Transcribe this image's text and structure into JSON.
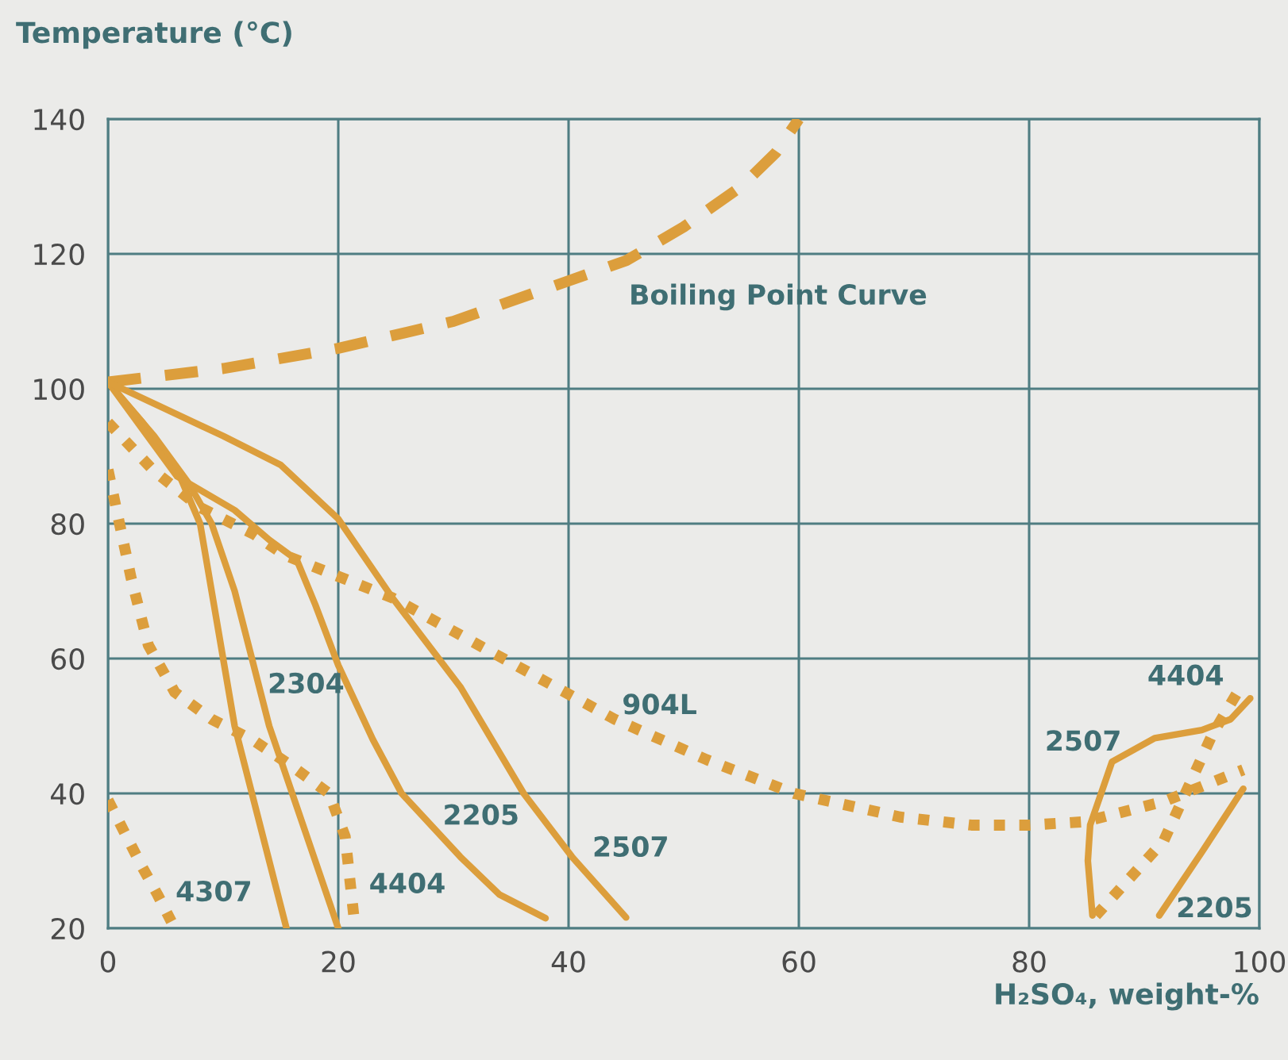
{
  "chart_data": {
    "type": "line",
    "ylabel": "Temperature (°C)",
    "xlabel": "H₂SO₄, weight-%",
    "xlim": [
      0,
      100
    ],
    "ylim": [
      20,
      140
    ],
    "xticks": [
      0,
      20,
      40,
      60,
      80,
      100
    ],
    "yticks": [
      20,
      40,
      60,
      80,
      100,
      120,
      140
    ],
    "grid": true,
    "marker": "none",
    "series": [
      {
        "name": "Boiling Point Curve",
        "line_style": "dashed",
        "color": "#dc9e3c",
        "x": [
          0,
          10,
          20,
          30,
          40,
          45,
          50,
          55,
          58,
          60
        ],
        "values": [
          101,
          103,
          106,
          110,
          116,
          119,
          124,
          130,
          135,
          140
        ]
      },
      {
        "line_style": "solid",
        "color": "#dc9e3c",
        "x": [
          0,
          3,
          6,
          8,
          9,
          10,
          11,
          12.5,
          14,
          15.5
        ],
        "values": [
          101,
          95,
          88,
          80,
          70,
          60,
          50,
          40,
          30,
          20
        ]
      },
      {
        "name": "2304",
        "line_style": "solid",
        "color": "#dc9e3c",
        "x": [
          0,
          4,
          7,
          9,
          11,
          12.5,
          14,
          16,
          18,
          20
        ],
        "values": [
          101,
          93,
          86,
          80,
          70,
          60,
          50,
          40,
          30,
          20
        ]
      },
      {
        "name": "2205",
        "line_style": "solid",
        "color": "#dc9e3c",
        "x": [
          0,
          3,
          6,
          8,
          11,
          14,
          16.4,
          18,
          20,
          23,
          25.5,
          30.6,
          34,
          38
        ],
        "values": [
          101,
          94,
          87,
          85,
          82,
          77.6,
          74.6,
          68,
          59,
          48,
          40,
          30.6,
          25,
          21.5
        ]
      },
      {
        "name": "2507",
        "line_style": "solid",
        "color": "#dc9e3c",
        "x": [
          0,
          5,
          10,
          15,
          20,
          24.7,
          30.6,
          36.1,
          40.3,
          45
        ],
        "values": [
          101,
          97,
          93,
          88.7,
          80.7,
          69,
          55.8,
          40,
          30.6,
          21.6
        ]
      },
      {
        "name": "904L",
        "line_style": "dotted",
        "color": "#dc9e3c",
        "x": [
          0,
          4,
          8,
          12.7,
          15.4,
          24.7,
          33.8,
          44,
          52,
          59.6,
          68.8,
          75,
          80,
          84.8,
          91.7,
          98.6
        ],
        "values": [
          95,
          87.8,
          82.4,
          78.4,
          75.3,
          69,
          60.5,
          51,
          45,
          40,
          36.5,
          35.3,
          35.3,
          35.8,
          38.8,
          43.5
        ]
      },
      {
        "name": "4404",
        "line_style": "dotted",
        "color": "#dc9e3c",
        "x": [
          0,
          1,
          2,
          3.5,
          5.8,
          9,
          12.7,
          16,
          19.2,
          20.6,
          21.4
        ],
        "values": [
          88,
          80,
          72,
          62,
          55,
          51,
          47.8,
          44,
          40,
          33.6,
          21
        ]
      },
      {
        "name": "4307",
        "line_style": "dotted",
        "color": "#dc9e3c",
        "x": [
          0,
          1.5,
          3,
          4.3,
          5.5
        ],
        "values": [
          39,
          34,
          29,
          25,
          21
        ]
      },
      {
        "name": "2507",
        "line_style": "solid",
        "color": "#dc9e3c",
        "x": [
          85.5,
          85.1,
          85.3,
          87.2,
          90.9,
          95,
          97.5,
          99.2
        ],
        "values": [
          21.9,
          30,
          35.3,
          44.7,
          48.2,
          49.4,
          51,
          54.1
        ]
      },
      {
        "name": "4404",
        "line_style": "dotted",
        "color": "#dc9e3c",
        "x": [
          85.8,
          91.7,
          95.9,
          98.2
        ],
        "values": [
          21.9,
          33,
          48.7,
          55.3
        ]
      },
      {
        "name": "2205",
        "line_style": "solid",
        "color": "#dc9e3c",
        "x": [
          91.3,
          95,
          98.6
        ],
        "values": [
          21.9,
          31.3,
          40.7
        ]
      }
    ]
  }
}
